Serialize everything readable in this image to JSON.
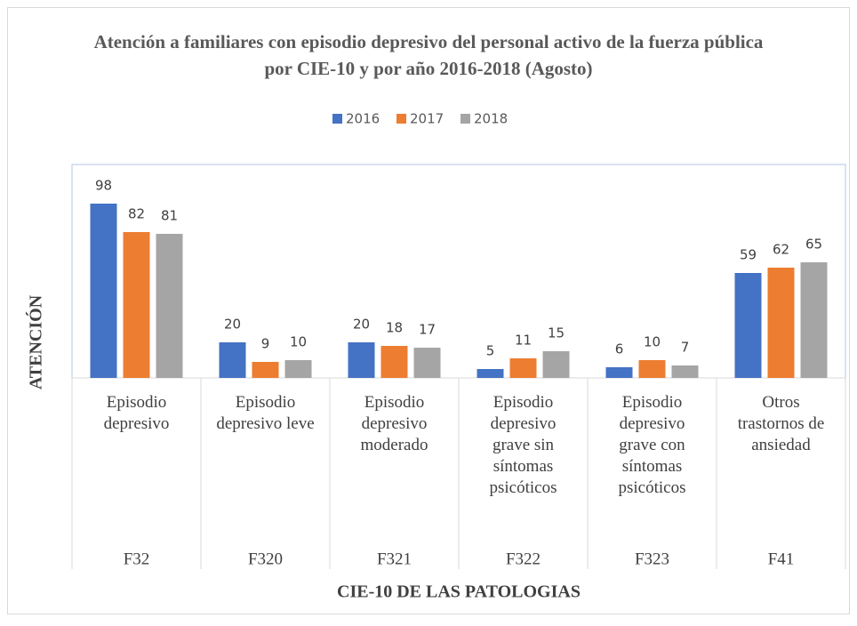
{
  "chart_data": {
    "type": "bar",
    "title": "Atención a familiares con episodio depresivo del personal activo de la fuerza pública por  CIE-10 y por año 2016-2018 (Agosto)",
    "x_label": "CIE-10 DE LAS PATOLOGIAS",
    "y_label": "ATENCIÓN",
    "categories": [
      "Episodio depresivo",
      "Episodio depresivo leve",
      "Episodio depresivo moderado",
      "Episodio depresivo grave sin síntomas psicóticos",
      "Episodio depresivo grave con síntomas psicóticos",
      "Otros trastornos de ansiedad"
    ],
    "codes": [
      "F32",
      "F320",
      "F321",
      "F322",
      "F323",
      "F41"
    ],
    "series": [
      {
        "name": "2016",
        "color": "#4472c4",
        "values": [
          98,
          20,
          20,
          5,
          6,
          59
        ]
      },
      {
        "name": "2017",
        "color": "#ed7d31",
        "values": [
          82,
          9,
          18,
          11,
          10,
          62
        ]
      },
      {
        "name": "2018",
        "color": "#a5a5a5",
        "values": [
          81,
          10,
          17,
          15,
          7,
          65
        ]
      }
    ],
    "ylim": [
      0,
      120
    ],
    "legend": "top"
  }
}
